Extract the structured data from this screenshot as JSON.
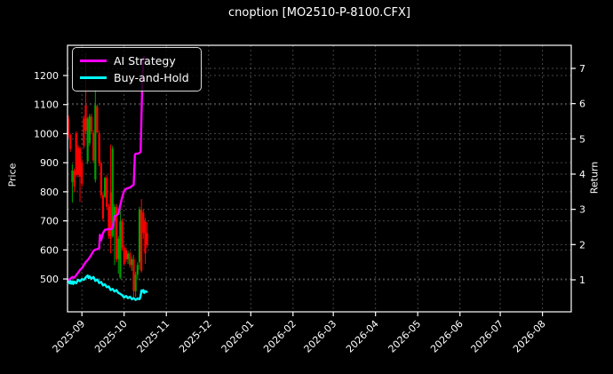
{
  "title": "cnoption [MO2510-P-8100.CFX]",
  "colors": {
    "background": "#000000",
    "text": "#ffffff",
    "grid": "rgba(255,255,255,0.28)",
    "spine": "#ffffff",
    "ai_strategy": "#ff00ff",
    "buy_and_hold": "#00ffff",
    "candle_up": "#00a000",
    "candle_down": "#ff0000"
  },
  "axes": {
    "price_label": "Price",
    "return_label": "Return",
    "price_ticks": [
      500,
      600,
      700,
      800,
      900,
      1000,
      1100,
      1200
    ],
    "return_ticks": [
      1,
      2,
      3,
      4,
      5,
      6,
      7
    ],
    "price_range": [
      387,
      1304
    ],
    "return_range": [
      0.092,
      7.655
    ],
    "t_range": [
      -0.5,
      262
    ],
    "x_ticks": [
      {
        "label": "2025-09",
        "t": 7
      },
      {
        "label": "2025-10",
        "t": 29
      },
      {
        "label": "2025-11",
        "t": 51
      },
      {
        "label": "2025-12",
        "t": 73
      },
      {
        "label": "2026-01",
        "t": 95
      },
      {
        "label": "2026-02",
        "t": 117
      },
      {
        "label": "2026-03",
        "t": 138
      },
      {
        "label": "2026-04",
        "t": 160
      },
      {
        "label": "2026-05",
        "t": 182
      },
      {
        "label": "2026-06",
        "t": 204
      },
      {
        "label": "2026-07",
        "t": 225
      },
      {
        "label": "2026-08",
        "t": 247
      }
    ]
  },
  "legend": {
    "items": [
      {
        "label": "AI Strategy",
        "color": "#ff00ff"
      },
      {
        "label": "Buy-and-Hold",
        "color": "#00ffff"
      }
    ]
  },
  "chart_data": {
    "type": "candlestick+line",
    "title": "cnoption [MO2510-P-8100.CFX]",
    "xlabel": "",
    "ylabel_left": "Price",
    "ylabel_right": "Return",
    "grid": true,
    "legend_position": "upper left",
    "candles": {
      "axis": "price",
      "columns": [
        "date",
        "open",
        "high",
        "low",
        "close"
      ],
      "ohlc": [
        [
          "2025-08-21",
          1050,
          1062,
          985,
          995
        ],
        [
          "2025-08-22",
          995,
          1000,
          938,
          948
        ],
        [
          "2025-08-25",
          833,
          895,
          763,
          873
        ],
        [
          "2025-08-26",
          872,
          880,
          798,
          818
        ],
        [
          "2025-08-27",
          1000,
          1008,
          852,
          858
        ],
        [
          "2025-08-28",
          952,
          962,
          850,
          858
        ],
        [
          "2025-08-29",
          948,
          955,
          765,
          852
        ],
        [
          "2025-09-01",
          900,
          912,
          818,
          828
        ],
        [
          "2025-09-02",
          1052,
          1062,
          948,
          958
        ],
        [
          "2025-09-03",
          1098,
          1278,
          1002,
          1010
        ],
        [
          "2025-09-04",
          905,
          1058,
          895,
          1052
        ],
        [
          "2025-09-05",
          968,
          1068,
          958,
          1060
        ],
        [
          "2025-09-08",
          1058,
          1068,
          998,
          1008
        ],
        [
          "2025-09-09",
          1002,
          1012,
          898,
          908
        ],
        [
          "2025-09-10",
          842,
          1152,
          832,
          1098
        ],
        [
          "2025-09-11",
          1092,
          1100,
          1000,
          1005
        ],
        [
          "2025-09-12",
          1000,
          1010,
          888,
          898
        ],
        [
          "2025-09-15",
          898,
          905,
          778,
          788
        ],
        [
          "2025-09-16",
          788,
          798,
          698,
          708
        ],
        [
          "2025-09-17",
          783,
          852,
          778,
          848
        ],
        [
          "2025-09-18",
          848,
          858,
          738,
          748
        ],
        [
          "2025-09-19",
          748,
          758,
          638,
          648
        ],
        [
          "2025-09-22",
          798,
          962,
          588,
          638
        ],
        [
          "2025-09-23",
          648,
          958,
          642,
          948
        ],
        [
          "2025-09-24",
          698,
          758,
          548,
          748
        ],
        [
          "2025-09-25",
          748,
          758,
          558,
          568
        ],
        [
          "2025-09-26",
          568,
          648,
          518,
          638
        ],
        [
          "2025-09-29",
          505,
          748,
          500,
          698
        ],
        [
          "2025-09-30",
          698,
          708,
          598,
          608
        ],
        [
          "2025-10-01",
          608,
          618,
          545,
          552
        ],
        [
          "2025-10-02",
          598,
          608,
          558,
          568
        ],
        [
          "2025-10-03",
          568,
          598,
          552,
          588
        ],
        [
          "2025-10-06",
          588,
          595,
          538,
          548
        ],
        [
          "2025-10-07",
          548,
          578,
          528,
          568
        ],
        [
          "2025-10-08",
          568,
          583,
          435,
          458
        ],
        [
          "2025-10-09",
          458,
          525,
          438,
          515
        ],
        [
          "2025-10-10",
          515,
          558,
          498,
          548
        ],
        [
          "2025-10-13",
          558,
          748,
          532,
          738
        ],
        [
          "2025-10-14",
          738,
          775,
          522,
          528
        ],
        [
          "2025-10-15",
          728,
          740,
          638,
          658
        ],
        [
          "2025-10-16",
          698,
          710,
          552,
          588
        ],
        [
          "2025-10-17",
          658,
          695,
          608,
          618
        ]
      ]
    },
    "series": [
      {
        "name": "AI Strategy",
        "axis": "return",
        "color": "#ff00ff",
        "points": [
          [
            0,
            1.0
          ],
          [
            1,
            1.03
          ],
          [
            2,
            1.08
          ],
          [
            3,
            1.06
          ],
          [
            4,
            1.13
          ],
          [
            5,
            1.2
          ],
          [
            6,
            1.28
          ],
          [
            7,
            1.33
          ],
          [
            8,
            1.42
          ],
          [
            9,
            1.5
          ],
          [
            10,
            1.56
          ],
          [
            11,
            1.63
          ],
          [
            12,
            1.72
          ],
          [
            13,
            1.82
          ],
          [
            14,
            1.86
          ],
          [
            15,
            1.87
          ],
          [
            16,
            1.9
          ],
          [
            16.4,
            2.28
          ],
          [
            17,
            2.12
          ],
          [
            18,
            2.33
          ],
          [
            19,
            2.42
          ],
          [
            20,
            2.43
          ],
          [
            21,
            2.44
          ],
          [
            22,
            2.44
          ],
          [
            23,
            2.47
          ],
          [
            24,
            2.8
          ],
          [
            25,
            2.83
          ],
          [
            26,
            2.87
          ],
          [
            27,
            3.12
          ],
          [
            28,
            3.35
          ],
          [
            29,
            3.52
          ],
          [
            30,
            3.58
          ],
          [
            31,
            3.6
          ],
          [
            32,
            3.62
          ],
          [
            33,
            3.66
          ],
          [
            34,
            3.7
          ],
          [
            34.6,
            4.55
          ],
          [
            35,
            4.58
          ],
          [
            36,
            4.58
          ],
          [
            37,
            4.6
          ],
          [
            37.6,
            4.64
          ],
          [
            38,
            5.6
          ],
          [
            38.5,
            6.6
          ],
          [
            39,
            7.28
          ],
          [
            39.4,
            7.32
          ]
        ]
      },
      {
        "name": "Buy-and-Hold",
        "axis": "return",
        "color": "#00ffff",
        "points": [
          [
            0,
            1.0
          ],
          [
            0.5,
            0.9
          ],
          [
            1,
            0.97
          ],
          [
            1.5,
            0.89
          ],
          [
            2,
            0.95
          ],
          [
            2.5,
            0.88
          ],
          [
            3,
            0.95
          ],
          [
            4,
            0.9
          ],
          [
            5,
            1.0
          ],
          [
            6,
            0.96
          ],
          [
            7,
            1.02
          ],
          [
            8,
            1.0
          ],
          [
            9,
            1.07
          ],
          [
            10,
            1.12
          ],
          [
            10.5,
            1.05
          ],
          [
            11,
            1.1
          ],
          [
            12,
            1.03
          ],
          [
            13,
            1.08
          ],
          [
            14,
            0.97
          ],
          [
            15,
            1.01
          ],
          [
            16,
            0.91
          ],
          [
            17,
            0.94
          ],
          [
            18,
            0.84
          ],
          [
            19,
            0.87
          ],
          [
            20,
            0.79
          ],
          [
            21,
            0.81
          ],
          [
            22,
            0.71
          ],
          [
            23,
            0.74
          ],
          [
            24,
            0.67
          ],
          [
            25,
            0.71
          ],
          [
            26,
            0.63
          ],
          [
            27,
            0.6
          ],
          [
            28,
            0.56
          ],
          [
            29,
            0.5
          ],
          [
            30,
            0.54
          ],
          [
            31,
            0.48
          ],
          [
            32,
            0.52
          ],
          [
            33,
            0.45
          ],
          [
            34,
            0.48
          ],
          [
            35,
            0.43
          ],
          [
            36,
            0.47
          ],
          [
            37,
            0.45
          ],
          [
            37.5,
            0.52
          ],
          [
            38,
            0.7
          ],
          [
            38.5,
            0.66
          ],
          [
            39,
            0.71
          ],
          [
            39.5,
            0.63
          ],
          [
            40,
            0.68
          ],
          [
            40.8,
            0.66
          ]
        ]
      }
    ]
  }
}
